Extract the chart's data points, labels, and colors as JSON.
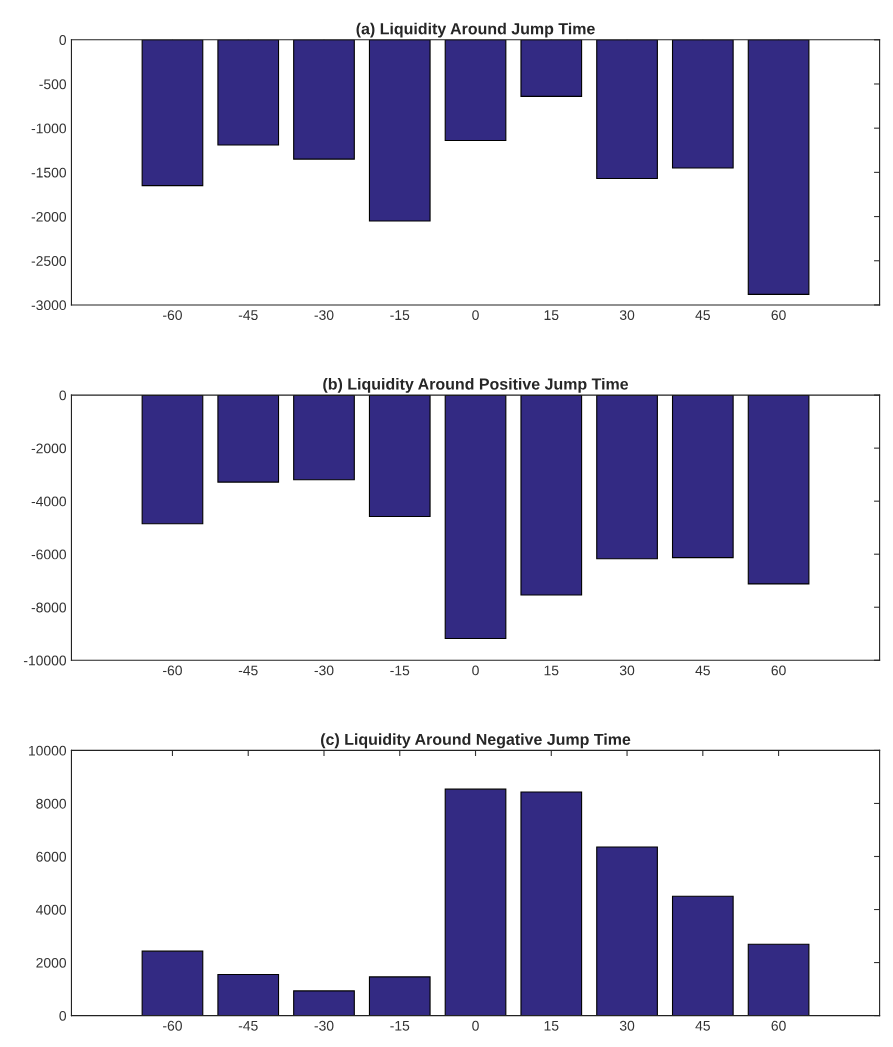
{
  "chart_data": [
    {
      "type": "bar",
      "title": "(a) Liquidity Around Jump Time",
      "x": [
        -60,
        -45,
        -30,
        -15,
        0,
        15,
        30,
        45,
        60
      ],
      "values": [
        -1650,
        -1190,
        -1350,
        -2050,
        -1140,
        -640,
        -1570,
        -1450,
        -2880
      ],
      "color": "#332a83",
      "xlim": [
        -80,
        80
      ],
      "xticks": [
        -60,
        -45,
        -30,
        -15,
        0,
        15,
        30,
        45,
        60
      ],
      "ylim": [
        -3000,
        0
      ],
      "yticks": [
        -3000,
        -2500,
        -2000,
        -1500,
        -1000,
        -500,
        0
      ],
      "grid": false
    },
    {
      "type": "bar",
      "title": "(b) Liquidity Around Positive Jump Time",
      "x": [
        -60,
        -45,
        -30,
        -15,
        0,
        15,
        30,
        45,
        60
      ],
      "values": [
        -4850,
        -3280,
        -3190,
        -4580,
        -9180,
        -7540,
        -6170,
        -6130,
        -7120
      ],
      "color": "#332a83",
      "xlim": [
        -80,
        80
      ],
      "xticks": [
        -60,
        -45,
        -30,
        -15,
        0,
        15,
        30,
        45,
        60
      ],
      "ylim": [
        -10000,
        0
      ],
      "yticks": [
        -10000,
        -8000,
        -6000,
        -4000,
        -2000,
        0
      ],
      "grid": false
    },
    {
      "type": "bar",
      "title": "(c) Liquidity Around Negative Jump Time",
      "x": [
        -60,
        -45,
        -30,
        -15,
        0,
        15,
        30,
        45,
        60
      ],
      "values": [
        2430,
        1550,
        930,
        1460,
        8540,
        8430,
        6360,
        4500,
        2690
      ],
      "color": "#332a83",
      "xlim": [
        -80,
        80
      ],
      "xticks": [
        -60,
        -45,
        -30,
        -15,
        0,
        15,
        30,
        45,
        60
      ],
      "ylim": [
        0,
        10000
      ],
      "yticks": [
        0,
        2000,
        4000,
        6000,
        8000,
        10000
      ],
      "grid": false
    }
  ]
}
